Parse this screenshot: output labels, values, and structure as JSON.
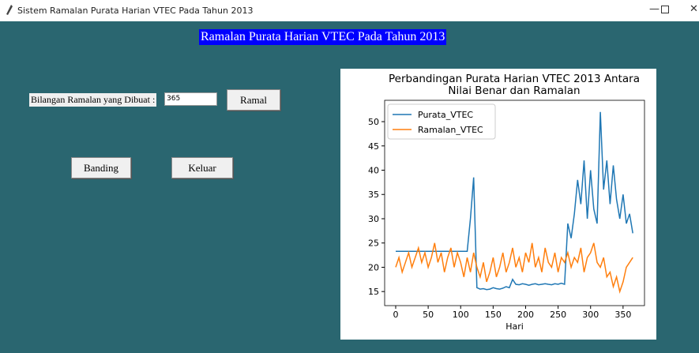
{
  "window_title": "Sistem Ramalan Purata Harian VTEC Pada Tahun 2013",
  "heading": "Ramalan Purata Harian VTEC Pada Tahun 2013",
  "form": {
    "label": "Bilangan Ramalan yang Dibuat :",
    "input_value": "365",
    "buttons": [
      "Ramal",
      "Banding",
      "Keluar"
    ]
  },
  "chart_data": {
    "type": "line",
    "title": "Perbandingan Purata Harian VTEC 2013 Antara Nilai Benar dan Ramalan",
    "x_label": "Hari",
    "x": [
      0,
      5,
      10,
      15,
      20,
      25,
      30,
      35,
      40,
      45,
      50,
      55,
      60,
      65,
      70,
      75,
      80,
      85,
      90,
      95,
      100,
      105,
      110,
      115,
      120,
      125,
      130,
      135,
      140,
      145,
      150,
      155,
      160,
      165,
      170,
      175,
      180,
      185,
      190,
      195,
      200,
      205,
      210,
      215,
      220,
      225,
      230,
      235,
      240,
      245,
      250,
      255,
      260,
      265,
      270,
      275,
      280,
      285,
      290,
      295,
      300,
      305,
      310,
      315,
      320,
      325,
      330,
      335,
      340,
      345,
      350,
      355,
      360,
      365
    ],
    "series": [
      {
        "name": "Purata_VTEC",
        "color": "#1f77b4",
        "values": [
          23.3,
          23.3,
          23.3,
          23.3,
          23.3,
          23.3,
          23.3,
          23.3,
          23.3,
          23.3,
          23.3,
          23.3,
          23.3,
          23.3,
          23.3,
          23.3,
          23.3,
          23.3,
          23.3,
          23.3,
          23.3,
          23.3,
          23.3,
          30,
          38.5,
          15.8,
          15.5,
          15.6,
          15.4,
          15.5,
          15.8,
          15.6,
          15.5,
          15.7,
          16,
          15.8,
          17.5,
          16.5,
          16.4,
          16.6,
          16.5,
          16.3,
          16.5,
          16.6,
          16.4,
          16.5,
          16.6,
          16.5,
          16.4,
          16.6,
          16.5,
          16.7,
          16.5,
          29,
          26,
          31,
          38,
          33,
          42,
          30,
          40,
          32,
          29,
          52,
          36,
          42,
          33,
          41,
          34,
          30,
          35,
          29,
          31,
          27
        ]
      },
      {
        "name": "Ramalan_VTEC",
        "color": "#ff7f0e",
        "values": [
          20,
          22,
          19,
          21,
          23,
          20,
          22,
          24,
          21,
          23,
          20,
          22,
          25,
          21,
          23,
          19,
          22,
          24,
          20,
          23,
          21,
          18,
          22,
          19,
          23,
          20,
          18,
          21,
          17,
          19,
          22,
          18,
          20,
          23,
          19,
          21,
          24,
          20,
          22,
          19,
          23,
          21,
          25,
          20,
          22,
          19,
          24,
          21,
          20,
          23,
          19,
          22,
          21,
          23,
          20,
          22,
          21,
          24,
          19,
          22,
          23,
          25,
          21,
          20,
          22,
          18,
          19,
          16,
          18,
          15,
          17,
          20,
          21,
          22
        ]
      }
    ],
    "xlim": [
      -17,
      383
    ],
    "ylim": [
      12.1,
      54.4
    ],
    "xticks": [
      0,
      50,
      100,
      150,
      200,
      250,
      300,
      350
    ],
    "yticks": [
      15,
      20,
      25,
      30,
      35,
      40,
      45,
      50
    ],
    "legend": "upper left"
  }
}
